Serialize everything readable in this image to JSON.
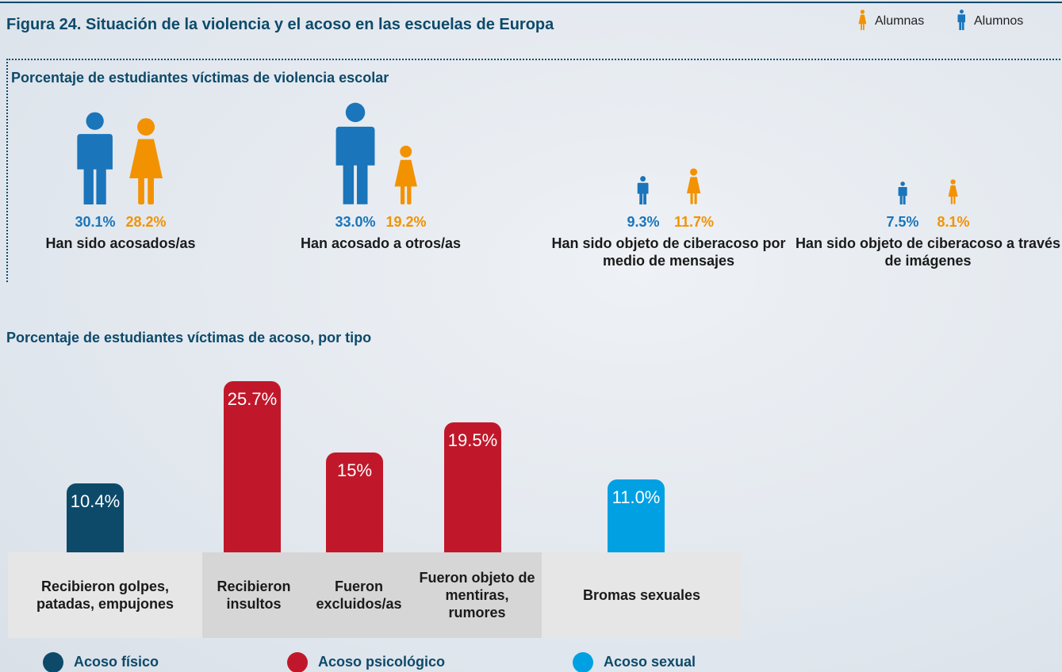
{
  "title": "Figura 24. Situación de la violencia y el acoso en las escuelas de Europa",
  "chart_data": [
    {
      "type": "pictogram",
      "title": "Porcentaje de estudiantes víctimas de violencia escolar",
      "categories": [
        "Han sido acosados/as",
        "Han acosado a otros/as",
        "Han sido objeto de ciberacoso por medio de mensajes",
        "Han sido objeto de ciberacoso a través de imágenes"
      ],
      "series": [
        {
          "name": "Alumnas",
          "color": "#f39200",
          "values": [
            28.2,
            19.2,
            11.7,
            8.1
          ],
          "value_labels": [
            "28.2%",
            "19.2%",
            "11.7%",
            "8.1%"
          ]
        },
        {
          "name": "Alumnos",
          "color": "#1a75bb",
          "values": [
            30.1,
            33.0,
            9.3,
            7.5
          ],
          "value_labels": [
            "30.1%",
            "33.0%",
            "9.3%",
            "7.5%"
          ]
        }
      ]
    },
    {
      "type": "bar",
      "title": "Porcentaje de estudiantes víctimas de acoso, por tipo",
      "categories": [
        "Recibieron golpes, patadas, empujones",
        "Recibieron insultos",
        "Fueron excluidos/as",
        "Fueron objeto de mentiras, rumores",
        "Bromas sexuales"
      ],
      "values": [
        10.4,
        25.7,
        15,
        19.5,
        11.0
      ],
      "value_labels": [
        "10.4%",
        "25.7%",
        "15%",
        "19.5%",
        "11.0%"
      ],
      "colors": [
        "#0d4a6a",
        "#c0182a",
        "#c0182a",
        "#c0182a",
        "#00a0e3"
      ],
      "legend": [
        {
          "name": "Acoso físico",
          "color": "#0d4a6a"
        },
        {
          "name": "Acoso psicológico",
          "color": "#c0182a"
        },
        {
          "name": "Acoso sexual",
          "color": "#00a0e3"
        }
      ]
    }
  ]
}
